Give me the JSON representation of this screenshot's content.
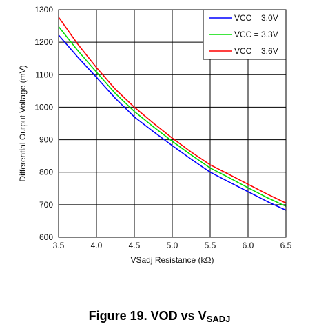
{
  "chart_data": {
    "type": "line",
    "title": "",
    "xlabel": "VSadj Resistance (kΩ)",
    "ylabel": "Differential Output Voltage (mV)",
    "xlim": [
      3.5,
      6.5
    ],
    "ylim": [
      600,
      1300
    ],
    "xticks": [
      3.5,
      4.0,
      4.5,
      5.0,
      5.5,
      6.0,
      6.5
    ],
    "xtick_labels": [
      "3.5",
      "4.0",
      "4.5",
      "5.0",
      "5.5",
      "6.0",
      "6.5"
    ],
    "yticks": [
      600,
      700,
      800,
      900,
      1000,
      1100,
      1200,
      1300
    ],
    "ytick_labels": [
      "600",
      "700",
      "800",
      "900",
      "1000",
      "1100",
      "1200",
      "1300"
    ],
    "grid": true,
    "legend_position": "top-right",
    "series": [
      {
        "name": "VCC = 3.0V",
        "color": "#0000ff",
        "x": [
          3.5,
          3.75,
          4.0,
          4.25,
          4.5,
          4.75,
          5.0,
          5.25,
          5.5,
          5.75,
          6.0,
          6.25,
          6.5
        ],
        "y": [
          1222,
          1155,
          1092,
          1027,
          970,
          925,
          882,
          840,
          800,
          770,
          740,
          710,
          683
        ]
      },
      {
        "name": "VCC = 3.3V",
        "color": "#00dd00",
        "x": [
          3.5,
          3.75,
          4.0,
          4.25,
          4.5,
          4.75,
          5.0,
          5.25,
          5.5,
          5.75,
          6.0,
          6.25,
          6.5
        ],
        "y": [
          1248,
          1175,
          1108,
          1042,
          987,
          940,
          895,
          853,
          813,
          783,
          752,
          722,
          695
        ]
      },
      {
        "name": "VCC = 3.6V",
        "color": "#ff0000",
        "x": [
          3.5,
          3.75,
          4.0,
          4.25,
          4.5,
          4.75,
          5.0,
          5.25,
          5.5,
          5.75,
          6.0,
          6.25,
          6.5
        ],
        "y": [
          1277,
          1195,
          1122,
          1055,
          1000,
          951,
          905,
          862,
          823,
          793,
          763,
          733,
          705
        ]
      }
    ]
  },
  "caption": {
    "main": "Figure 19. VOD vs V",
    "subscript": "SADJ"
  }
}
